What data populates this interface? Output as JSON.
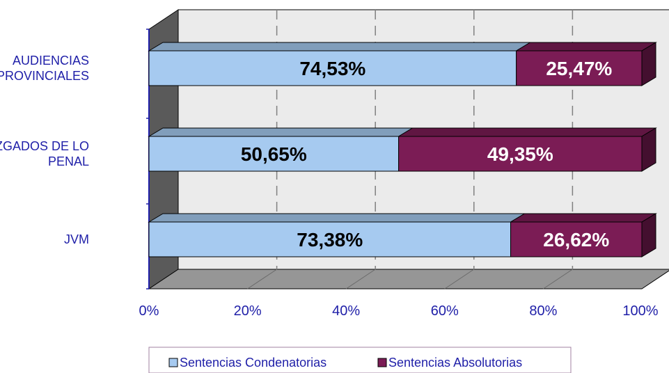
{
  "chart_data": {
    "type": "bar",
    "orientation": "horizontal",
    "stacked": "percent",
    "categories": [
      [
        "AUDIENCIAS",
        "PROVINCIALES"
      ],
      [
        "JUZGADOS DE LO",
        "PENAL"
      ],
      [
        "JVM"
      ]
    ],
    "series": [
      {
        "name": "Sentencias Condenatorias",
        "values": [
          74.53,
          50.65,
          73.38
        ],
        "labels": [
          "74,53%",
          "50,65%",
          "73,38%"
        ],
        "color": "#a6caf0"
      },
      {
        "name": "Sentencias Absolutorias",
        "values": [
          25.47,
          49.35,
          26.62
        ],
        "labels": [
          "25,47%",
          "49,35%",
          "26,62%"
        ],
        "color": "#7b1c55"
      }
    ],
    "xticks": [
      "0%",
      "20%",
      "40%",
      "60%",
      "80%",
      "100%"
    ],
    "xlim": [
      0,
      100
    ],
    "grid": true,
    "legend": "bottom",
    "colors": {
      "wall": "#5a5a5a",
      "floor": "#969696",
      "plot_back": "#ebebeb",
      "axis": "#1f1fa8"
    }
  }
}
